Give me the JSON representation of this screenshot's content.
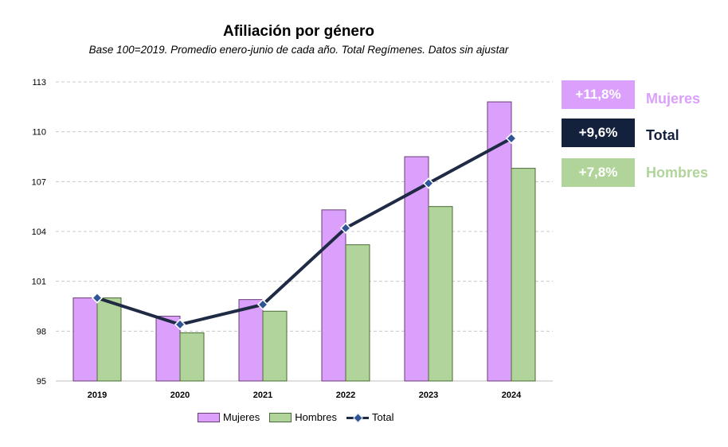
{
  "chart_data": {
    "type": "bar",
    "title": "Afiliación por género",
    "subtitle": "Base 100=2019. Promedio enero-junio de cada año. Total Regímenes. Datos sin ajustar",
    "categories": [
      "2019",
      "2020",
      "2021",
      "2022",
      "2023",
      "2024"
    ],
    "series": [
      {
        "name": "Mujeres",
        "kind": "bar",
        "color": "#dba0fb",
        "values": [
          100.0,
          98.9,
          99.9,
          105.3,
          108.5,
          111.8
        ]
      },
      {
        "name": "Hombres",
        "kind": "bar",
        "color": "#b1d49a",
        "values": [
          100.0,
          97.9,
          99.2,
          103.2,
          105.5,
          107.8
        ]
      },
      {
        "name": "Total",
        "kind": "line",
        "color": "#1f2a44",
        "marker_color": "#2f5597",
        "values": [
          100.0,
          98.4,
          99.6,
          104.2,
          106.9,
          109.6
        ]
      }
    ],
    "ylim": [
      95,
      113
    ],
    "yticks": [
      95,
      98,
      101,
      104,
      107,
      110,
      113
    ],
    "xlabel": "",
    "ylabel": "",
    "grid": true,
    "legend_position": "bottom"
  },
  "badges": [
    {
      "value": "+11,8%",
      "label": "Mujeres",
      "bg": "#dba0fb",
      "label_color": "#dba0fb"
    },
    {
      "value": "+9,6%",
      "label": "Total",
      "bg": "#14213d",
      "label_color": "#14213d"
    },
    {
      "value": "+7,8%",
      "label": "Hombres",
      "bg": "#b1d49a",
      "label_color": "#b1d49a"
    }
  ]
}
